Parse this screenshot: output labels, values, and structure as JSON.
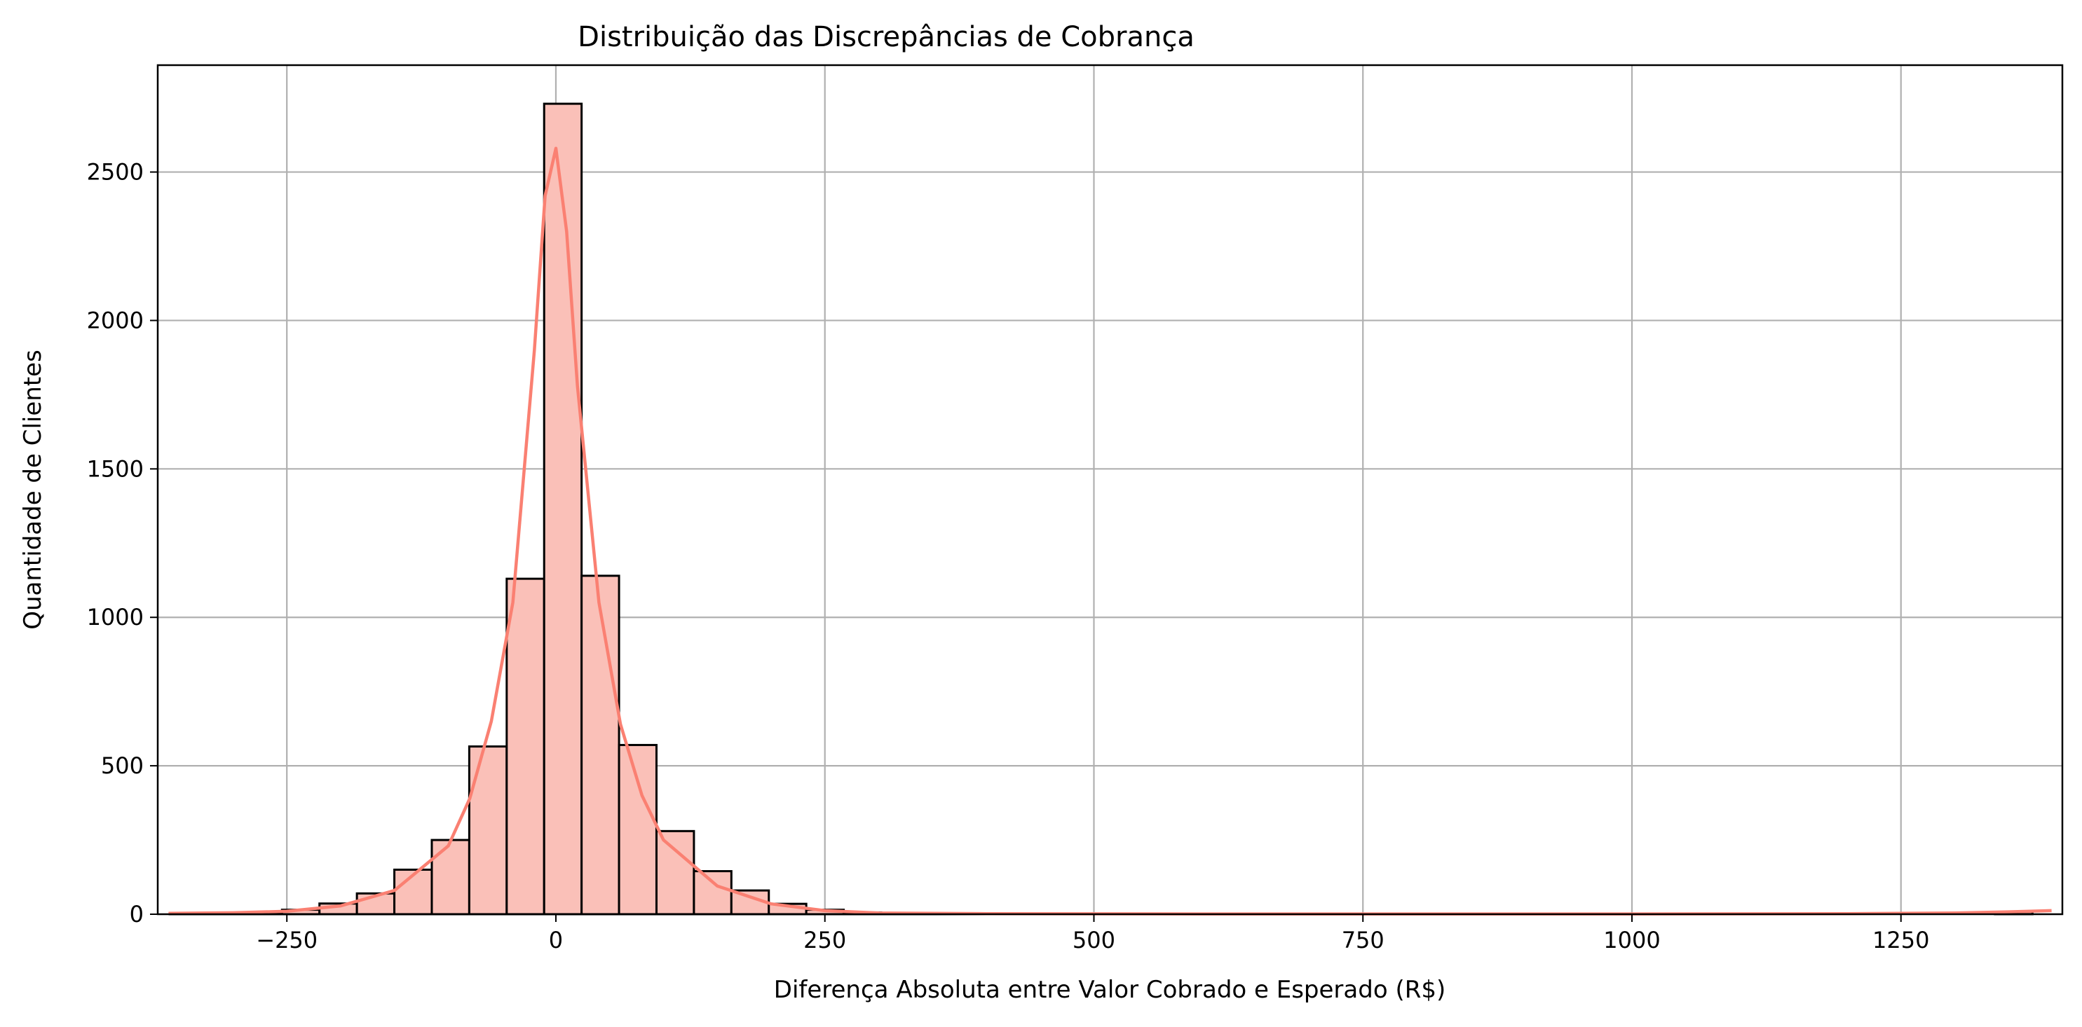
{
  "chart_data": {
    "type": "bar",
    "title": "Distribuição das Discrepâncias de Cobrança",
    "xlabel": "Diferença Absoluta entre Valor Cobrado e Esperado (R$)",
    "ylabel": "Quantidade de Clientes",
    "xlim": [
      -370,
      1400
    ],
    "ylim": [
      0,
      2860
    ],
    "x_ticks": [
      -250,
      0,
      250,
      500,
      750,
      1000,
      1250
    ],
    "y_ticks": [
      0,
      500,
      1000,
      1500,
      2000,
      2500
    ],
    "grid": true,
    "bin_width": 34.8,
    "bins": [
      {
        "start": -358.9,
        "count": 3
      },
      {
        "start": -324.1,
        "count": 2
      },
      {
        "start": -289.3,
        "count": 6
      },
      {
        "start": -254.5,
        "count": 15
      },
      {
        "start": -219.7,
        "count": 36
      },
      {
        "start": -184.9,
        "count": 70
      },
      {
        "start": -150.1,
        "count": 150
      },
      {
        "start": -115.3,
        "count": 250
      },
      {
        "start": -80.5,
        "count": 565
      },
      {
        "start": -45.7,
        "count": 1130
      },
      {
        "start": -10.9,
        "count": 2730
      },
      {
        "start": 23.9,
        "count": 1140
      },
      {
        "start": 58.7,
        "count": 570
      },
      {
        "start": 93.5,
        "count": 280
      },
      {
        "start": 128.3,
        "count": 145
      },
      {
        "start": 163.1,
        "count": 80
      },
      {
        "start": 197.9,
        "count": 35
      },
      {
        "start": 232.7,
        "count": 15
      },
      {
        "start": 267.5,
        "count": 6
      },
      {
        "start": 302.3,
        "count": 3
      },
      {
        "start": 337.1,
        "count": 2
      },
      {
        "start": 371.9,
        "count": 1
      },
      {
        "start": 1337.4,
        "count": 8
      }
    ],
    "kde": {
      "x": [
        -360,
        -300,
        -250,
        -200,
        -150,
        -100,
        -80,
        -60,
        -40,
        -20,
        -10,
        0,
        10,
        20,
        40,
        60,
        80,
        100,
        150,
        200,
        250,
        300,
        400,
        600,
        800,
        1000,
        1200,
        1300,
        1350,
        1390
      ],
      "y": [
        3,
        5,
        10,
        28,
        80,
        230,
        390,
        650,
        1050,
        1900,
        2420,
        2580,
        2300,
        1780,
        1050,
        640,
        400,
        250,
        95,
        35,
        12,
        4,
        2,
        1,
        1,
        1,
        2,
        4,
        8,
        12
      ]
    },
    "colors": {
      "bar_fill": "#FAC0B8",
      "bar_edge": "#000000",
      "kde_line": "#FA8072",
      "grid": "#B0B0B0"
    }
  }
}
